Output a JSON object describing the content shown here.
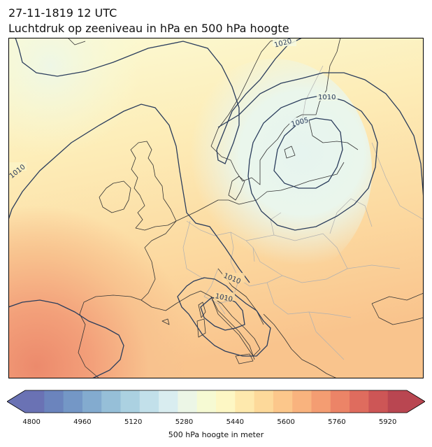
{
  "header": {
    "datetime": "27-11-1819 12 UTC",
    "subtitle": "Luchtdruk op zeeniveau in hPa en 500 hPa hoogte"
  },
  "map": {
    "isobar_labels": [
      "1020",
      "1010",
      "1005",
      "1010",
      "1010",
      "1010"
    ],
    "isobar_color": "#2b3d5c",
    "low_pressure_center_hpa": 1005
  },
  "colorbar": {
    "label": "500 hPa hoogte in meter",
    "ticks": [
      "4800",
      "4960",
      "5120",
      "5280",
      "5440",
      "5600",
      "5760",
      "5920"
    ],
    "min": 4780,
    "max": 5980,
    "step": 40,
    "colors": [
      "#6a72b4",
      "#6b84bd",
      "#7497c6",
      "#83abcf",
      "#96bfd8",
      "#abd1e1",
      "#c2e0ea",
      "#d9edf0",
      "#ecf6e6",
      "#f6fad3",
      "#fdf7c4",
      "#fee9ad",
      "#fdd99a",
      "#fcc78b",
      "#f9b37e",
      "#f49d72",
      "#ec8467",
      "#df6c5e",
      "#cd5656",
      "#b94651"
    ],
    "extend": "both"
  },
  "colors": {
    "land_border": "#b0b0b0",
    "coastline": "#333333"
  }
}
